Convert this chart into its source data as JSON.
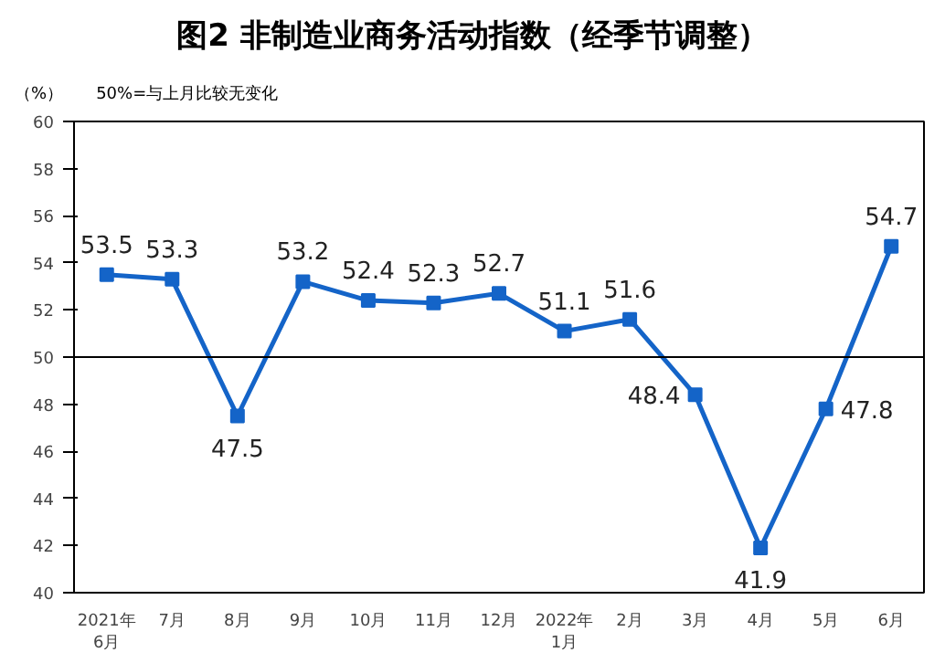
{
  "chart_data": {
    "type": "line",
    "title": "图2  非制造业商务活动指数（经季节调整）",
    "categories": [
      "2021年\n6月",
      "7月",
      "8月",
      "9月",
      "10月",
      "11月",
      "12月",
      "2022年\n1月",
      "2月",
      "3月",
      "4月",
      "5月",
      "6月"
    ],
    "series": [
      {
        "color": "#1464c8",
        "values": [
          53.5,
          53.3,
          47.5,
          53.2,
          52.4,
          52.3,
          52.7,
          51.1,
          51.6,
          48.4,
          41.9,
          47.8,
          54.7
        ]
      }
    ],
    "ylim": [
      40,
      60
    ],
    "yticks": [
      40,
      42,
      44,
      46,
      48,
      50,
      52,
      54,
      56,
      58,
      60
    ],
    "ref_lines": [
      {
        "axis": "y",
        "value": 50,
        "color": "#000000"
      }
    ],
    "annotations": [
      "（%）",
      "50%=与上月比较无变化"
    ],
    "data_labels": true,
    "marker": "square",
    "line_style": "solid",
    "grid": false
  }
}
